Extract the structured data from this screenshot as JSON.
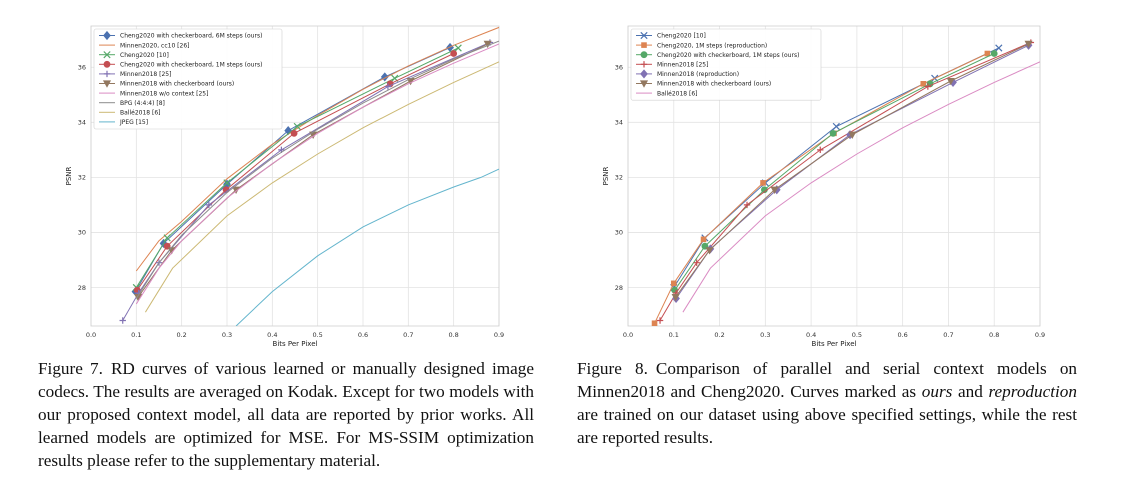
{
  "fig7": {
    "caption_label": "Figure 7.",
    "caption_text": "RD curves of various learned or manually designed image codecs. The results are averaged on Kodak. Except for two models with our proposed context model, all data are reported by prior works. All learned models are optimized for MSE. For MS-SSIM optimization results please refer to the supplementary material."
  },
  "fig8": {
    "caption_label": "Figure 8.",
    "caption_part1": "Comparison of parallel and serial context models on Minnen2018 and Cheng2020. Curves marked as ",
    "caption_em1": "ours",
    "caption_part2": " and ",
    "caption_em2": "reproduction",
    "caption_part3": " are trained on our dataset using above specified settings, while the rest are reported results."
  },
  "chart_data": [
    {
      "type": "line",
      "id": "fig7",
      "xlabel": "Bits Per Pixel",
      "ylabel": "PSNR",
      "xlim": [
        0.0,
        0.9
      ],
      "ylim": [
        26.6,
        37.5
      ],
      "xticks": [
        "0.0",
        "0.1",
        "0.2",
        "0.3",
        "0.4",
        "0.5",
        "0.6",
        "0.7",
        "0.8",
        "0.9"
      ],
      "yticks": [
        "28",
        "30",
        "32",
        "34",
        "36"
      ],
      "ytick_values": [
        28,
        30,
        32,
        34,
        36
      ],
      "grid": true,
      "legend_position": "top-left",
      "series": [
        {
          "name": "Cheng2020 with checkerboard, 6M steps (ours)",
          "color": "#4c72b0",
          "marker": "diamond",
          "x": [
            0.098,
            0.16,
            0.3,
            0.435,
            0.648,
            0.792
          ],
          "y": [
            27.85,
            29.6,
            31.75,
            33.7,
            35.65,
            36.72
          ]
        },
        {
          "name": "Minnen2020, cc10 [26]",
          "color": "#dd8452",
          "marker": "none",
          "x": [
            0.1,
            0.15,
            0.2,
            0.3,
            0.4,
            0.5,
            0.6,
            0.7,
            0.8,
            0.9
          ],
          "y": [
            28.6,
            29.7,
            30.4,
            31.95,
            33.2,
            34.25,
            35.2,
            36.05,
            36.8,
            37.45
          ]
        },
        {
          "name": "Cheng2020 [10]",
          "color": "#55a868",
          "marker": "x",
          "x": [
            0.1,
            0.168,
            0.3,
            0.455,
            0.67,
            0.81
          ],
          "y": [
            28.0,
            29.8,
            31.8,
            33.85,
            35.6,
            36.7
          ]
        },
        {
          "name": "Cheng2020 with checkerboard, 1M steps (ours)",
          "color": "#c44e52",
          "marker": "circle",
          "x": [
            0.102,
            0.168,
            0.298,
            0.448,
            0.66,
            0.8
          ],
          "y": [
            27.9,
            29.5,
            31.55,
            33.6,
            35.4,
            36.5
          ]
        },
        {
          "name": "Minnen2018 [25]",
          "color": "#8172b3",
          "marker": "plus",
          "x": [
            0.07,
            0.105,
            0.15,
            0.26,
            0.42,
            0.655,
            0.88
          ],
          "y": [
            26.8,
            27.8,
            28.9,
            31.0,
            33.0,
            35.3,
            36.9
          ]
        },
        {
          "name": "Minnen2018 with checkerboard (ours)",
          "color": "#937860",
          "marker": "triangle",
          "x": [
            0.104,
            0.178,
            0.32,
            0.49,
            0.705,
            0.875
          ],
          "y": [
            27.65,
            29.35,
            31.55,
            33.55,
            35.5,
            36.85
          ]
        },
        {
          "name": "Minnen2018 w/o context [25]",
          "color": "#da8bc3",
          "marker": "none",
          "x": [
            0.1,
            0.15,
            0.2,
            0.3,
            0.4,
            0.5,
            0.6,
            0.7,
            0.8,
            0.9
          ],
          "y": [
            27.4,
            28.7,
            29.7,
            31.25,
            32.5,
            33.6,
            34.55,
            35.4,
            36.15,
            36.85
          ]
        },
        {
          "name": "BPG (4:4:4) [8]",
          "color": "#8c8c8c",
          "marker": "none",
          "x": [
            0.1,
            0.15,
            0.2,
            0.3,
            0.4,
            0.5,
            0.6,
            0.7,
            0.8,
            0.9
          ],
          "y": [
            27.6,
            28.9,
            29.9,
            31.45,
            32.7,
            33.75,
            34.7,
            35.55,
            36.3,
            36.95
          ]
        },
        {
          "name": "Ballé2018 [6]",
          "color": "#ccb974",
          "marker": "none",
          "x": [
            0.12,
            0.18,
            0.3,
            0.4,
            0.5,
            0.6,
            0.7,
            0.8,
            0.9
          ],
          "y": [
            27.1,
            28.7,
            30.6,
            31.8,
            32.85,
            33.8,
            34.65,
            35.45,
            36.2
          ]
        },
        {
          "name": "JPEG [15]",
          "color": "#64b5cd",
          "marker": "none",
          "x": [
            0.32,
            0.4,
            0.5,
            0.6,
            0.7,
            0.8,
            0.86,
            0.9
          ],
          "y": [
            26.6,
            27.85,
            29.15,
            30.2,
            31.0,
            31.65,
            32.0,
            32.3
          ]
        }
      ]
    },
    {
      "type": "line",
      "id": "fig8",
      "xlabel": "Bits Per Pixel",
      "ylabel": "PSNR",
      "xlim": [
        0.0,
        0.9
      ],
      "ylim": [
        26.6,
        37.5
      ],
      "xticks": [
        "0.0",
        "0.1",
        "0.2",
        "0.3",
        "0.4",
        "0.5",
        "0.6",
        "0.7",
        "0.8",
        "0.9"
      ],
      "yticks": [
        "28",
        "30",
        "32",
        "34",
        "36"
      ],
      "ytick_values": [
        28,
        30,
        32,
        34,
        36
      ],
      "grid": true,
      "legend_position": "top-left",
      "series": [
        {
          "name": "Cheng2020 [10]",
          "color": "#4c72b0",
          "marker": "x",
          "x": [
            0.1,
            0.168,
            0.3,
            0.455,
            0.67,
            0.81
          ],
          "y": [
            28.0,
            29.8,
            31.8,
            33.85,
            35.6,
            36.7
          ]
        },
        {
          "name": "Cheng2020, 1M steps (reproduction)",
          "color": "#dd8452",
          "marker": "square",
          "x": [
            0.058,
            0.1,
            0.165,
            0.295,
            0.45,
            0.645,
            0.785
          ],
          "y": [
            26.7,
            28.15,
            29.75,
            31.8,
            33.6,
            35.4,
            36.5
          ]
        },
        {
          "name": "Cheng2020 with checkerboard, 1M steps (ours)",
          "color": "#55a868",
          "marker": "circle",
          "x": [
            0.102,
            0.168,
            0.298,
            0.448,
            0.66,
            0.8
          ],
          "y": [
            27.9,
            29.5,
            31.55,
            33.6,
            35.4,
            36.5
          ]
        },
        {
          "name": "Minnen2018 [25]",
          "color": "#c44e52",
          "marker": "plus",
          "x": [
            0.07,
            0.105,
            0.15,
            0.26,
            0.42,
            0.655,
            0.88
          ],
          "y": [
            26.8,
            27.8,
            28.9,
            31.0,
            33.0,
            35.3,
            36.9
          ]
        },
        {
          "name": "Minnen2018 (reproduction)",
          "color": "#8172b3",
          "marker": "diamond",
          "x": [
            0.105,
            0.18,
            0.325,
            0.485,
            0.71,
            0.875
          ],
          "y": [
            27.6,
            29.4,
            31.55,
            33.55,
            35.45,
            36.8
          ]
        },
        {
          "name": "Minnen2018 with checkerboard (ours)",
          "color": "#937860",
          "marker": "triangle",
          "x": [
            0.104,
            0.178,
            0.32,
            0.49,
            0.705,
            0.875
          ],
          "y": [
            27.65,
            29.35,
            31.55,
            33.55,
            35.5,
            36.85
          ]
        },
        {
          "name": "Ballé2018 [6]",
          "color": "#da8bc3",
          "marker": "none",
          "x": [
            0.12,
            0.18,
            0.3,
            0.4,
            0.5,
            0.6,
            0.7,
            0.8,
            0.9
          ],
          "y": [
            27.1,
            28.7,
            30.6,
            31.8,
            32.85,
            33.8,
            34.65,
            35.45,
            36.2
          ]
        }
      ]
    }
  ]
}
